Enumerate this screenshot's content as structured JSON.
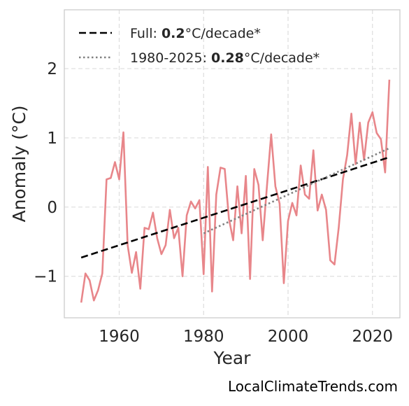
{
  "chart_data": {
    "type": "line",
    "title": "",
    "xlabel": "Year",
    "ylabel": "Anomaly (°C)",
    "xlim": [
      1947,
      2026.5
    ],
    "ylim": [
      -1.6,
      2.85
    ],
    "xticks": [
      1960,
      1980,
      2000,
      2020
    ],
    "yticks": [
      -1,
      0,
      1,
      2
    ],
    "ytick_labels": [
      "−1",
      "0",
      "1",
      "2"
    ],
    "grid": true,
    "legend_position": "top-left",
    "series": [
      {
        "style": "solid",
        "color": "#e8868a",
        "x": [
          1951,
          1952,
          1953,
          1954,
          1955,
          1956,
          1957,
          1958,
          1959,
          1960,
          1961,
          1962,
          1963,
          1964,
          1965,
          1966,
          1967,
          1968,
          1969,
          1970,
          1971,
          1972,
          1973,
          1974,
          1975,
          1976,
          1977,
          1978,
          1979,
          1980,
          1981,
          1982,
          1983,
          1984,
          1985,
          1986,
          1987,
          1988,
          1989,
          1990,
          1991,
          1992,
          1993,
          1994,
          1995,
          1996,
          1997,
          1998,
          1999,
          2000,
          2001,
          2002,
          2003,
          2004,
          2005,
          2006,
          2007,
          2008,
          2009,
          2010,
          2011,
          2012,
          2013,
          2014,
          2015,
          2016,
          2017,
          2018,
          2019,
          2020,
          2021,
          2022,
          2023,
          2024
        ],
        "y": [
          -1.38,
          -0.96,
          -1.06,
          -1.35,
          -1.2,
          -0.96,
          0.4,
          0.42,
          0.65,
          0.4,
          1.08,
          -0.55,
          -0.95,
          -0.65,
          -1.18,
          -0.3,
          -0.32,
          -0.08,
          -0.45,
          -0.68,
          -0.55,
          -0.04,
          -0.45,
          -0.3,
          -1.0,
          -0.12,
          0.08,
          -0.02,
          0.1,
          -0.97,
          0.58,
          -1.22,
          0.18,
          0.57,
          0.55,
          -0.17,
          -0.48,
          0.3,
          -0.38,
          0.45,
          -1.04,
          0.55,
          0.32,
          -0.48,
          0.3,
          1.05,
          0.3,
          0.05,
          -1.1,
          -0.2,
          0.06,
          -0.12,
          0.6,
          0.18,
          0.12,
          0.82,
          -0.05,
          0.18,
          -0.04,
          -0.77,
          -0.83,
          -0.3,
          0.4,
          0.75,
          1.35,
          0.62,
          1.22,
          0.68,
          1.22,
          1.37,
          1.07,
          0.98,
          0.5,
          1.84
        ]
      },
      {
        "style": "dashed",
        "color": "#000000",
        "x": [
          1951,
          2024
        ],
        "y": [
          -0.73,
          0.72
        ]
      },
      {
        "style": "dotted",
        "color": "#808080",
        "x": [
          1980,
          2024
        ],
        "y": [
          -0.38,
          0.85
        ]
      }
    ],
    "legend": [
      {
        "prefix": "Full: ",
        "value": "0.2",
        "suffix": "°C/decade*",
        "style": "dashed",
        "color": "#000000"
      },
      {
        "prefix": "1980-2025: ",
        "value": "0.28",
        "suffix": "°C/decade*",
        "style": "dotted",
        "color": "#808080"
      }
    ]
  },
  "credit": "LocalClimateTrends.com"
}
